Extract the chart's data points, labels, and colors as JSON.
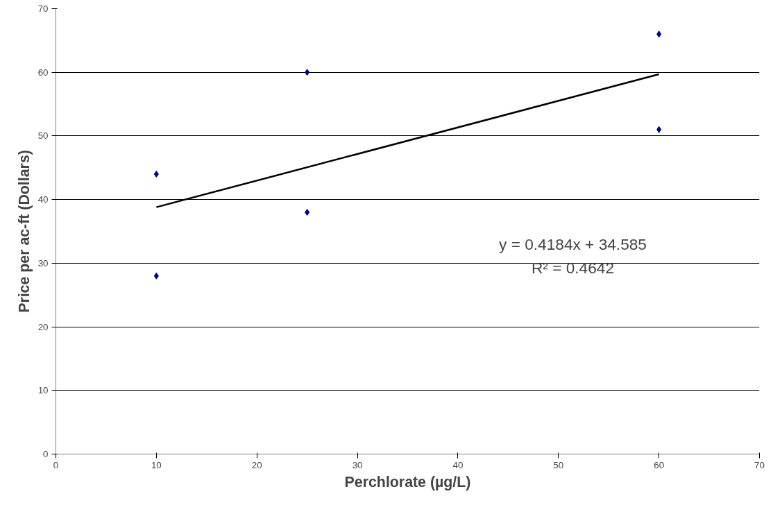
{
  "chart_data": {
    "type": "scatter",
    "xlabel": "Perchlorate (µg/L)",
    "ylabel": "Price per ac-ft (Dollars)",
    "xlim": [
      0,
      70
    ],
    "xticks": [
      0,
      10,
      20,
      30,
      40,
      50,
      60,
      70
    ],
    "ylim": [
      0,
      70
    ],
    "yticks": [
      0,
      10,
      20,
      30,
      40,
      50,
      60,
      70
    ],
    "grid": "y",
    "series": [
      {
        "color": "#000080",
        "x": [
          10,
          10,
          25,
          25,
          60,
          60
        ],
        "values": [
          44,
          28,
          60,
          38,
          66,
          51
        ],
        "marker": "diamond"
      },
      {
        "type": "line",
        "color": "#000000",
        "x": [
          10,
          60
        ],
        "values": [
          38.8,
          59.7
        ],
        "marker": "none"
      }
    ],
    "annotations": [
      "y = 0.4184x + 34.585",
      "R² = 0.4642"
    ]
  }
}
